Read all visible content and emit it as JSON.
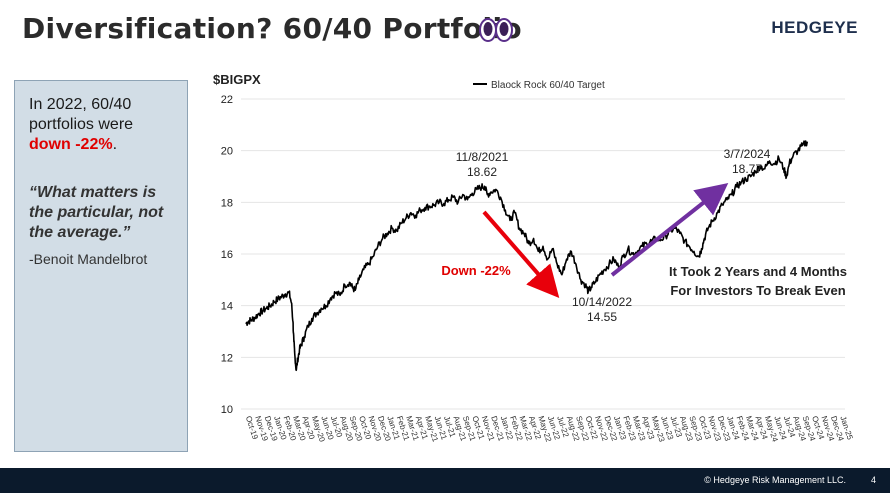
{
  "header": {
    "title": "Diversification? 60/40 Portfolio",
    "logo": "HEDGEYE",
    "emoji_icon": "eyes-icon"
  },
  "sidebar": {
    "line1": "In 2022, 60/40 portfolios were",
    "highlight": "down -22%",
    "period": ".",
    "quote": "“What matters is the particular, not the average.”",
    "author": "-Benoit Mandelbrot"
  },
  "footer": {
    "copyright": "© Hedgeye Risk Management LLC.",
    "page": "4"
  },
  "chart_data": {
    "type": "line",
    "title": "",
    "ylabel": "$BIGPX",
    "legend": "Blaock Rock 60/40 Target",
    "legend_position": "top-center",
    "ylim": [
      10,
      22
    ],
    "yticks": [
      10,
      12,
      14,
      16,
      18,
      20,
      22
    ],
    "x_categories": [
      "Oct-19",
      "Nov-19",
      "Dec-19",
      "Jan-20",
      "Feb-20",
      "Mar-20",
      "Apr-20",
      "May-20",
      "Jun-20",
      "Jul-20",
      "Aug-20",
      "Sep-20",
      "Oct-20",
      "Nov-20",
      "Dec-20",
      "Jan-21",
      "Feb-21",
      "Mar-21",
      "Apr-21",
      "May-21",
      "Jun-21",
      "Jul-21",
      "Aug-21",
      "Sep-21",
      "Oct-21",
      "Nov-21",
      "Dec-21",
      "Jan-22",
      "Feb-22",
      "Mar-22",
      "Apr-22",
      "May-22",
      "Jun-22",
      "Jul-22",
      "Aug-22",
      "Sep-22",
      "Oct-22",
      "Nov-22",
      "Dec-22",
      "Jan-23",
      "Feb-23",
      "Mar-23",
      "Apr-23",
      "May-23",
      "Jun-23",
      "Jul-23",
      "Aug-23",
      "Sep-23",
      "Oct-23",
      "Nov-23",
      "Dec-23",
      "Jan-24",
      "Feb-24",
      "Mar-24",
      "Apr-24",
      "May-24",
      "Jun-24",
      "Jul-24",
      "Aug-24",
      "Sep-24",
      "Oct-24",
      "Nov-24",
      "Dec-24",
      "Jan-25"
    ],
    "series": [
      {
        "name": "Blaock Rock 60/40 Target",
        "x": [
          0,
          0.3,
          0.6,
          1,
          1.4,
          1.8,
          2.2,
          2.6,
          3,
          3.4,
          3.8,
          4.2,
          4.6,
          4.85,
          5.0,
          5.1,
          5.2,
          5.35,
          5.5,
          5.7,
          5.9,
          6.2,
          6.6,
          7.0,
          7.5,
          8.0,
          8.5,
          9.0,
          9.5,
          10,
          10.5,
          11,
          11.3,
          11.6,
          12,
          12.5,
          13,
          13.5,
          14,
          14.5,
          15,
          15.5,
          16,
          16.5,
          17,
          17.5,
          18,
          18.5,
          19,
          19.5,
          20,
          20.5,
          21,
          21.5,
          22,
          22.5,
          23,
          23.5,
          24,
          24.5,
          25,
          25.3,
          25.6,
          26,
          26.5,
          27,
          27.5,
          28,
          28.5,
          29,
          29.5,
          30,
          30.5,
          31,
          31.5,
          32,
          32.5,
          33,
          33.5,
          34,
          34.5,
          35,
          35.5,
          36,
          36.3,
          36.6,
          37,
          37.5,
          38,
          38.5,
          39,
          39.5,
          40,
          40.5,
          41,
          41.5,
          42,
          42.5,
          43,
          43.5,
          44,
          44.5,
          45,
          45.5,
          46,
          46.5,
          47,
          47.5,
          48,
          48.3,
          48.6,
          49,
          49.5,
          50,
          50.5,
          51,
          51.5,
          52,
          52.5,
          53,
          53.5,
          54,
          54.5,
          55,
          55.5,
          56,
          56.5,
          57,
          57.3,
          57.6,
          58,
          58.5,
          59,
          59.5
        ],
        "y": [
          13.3,
          13.4,
          13.45,
          13.55,
          13.7,
          13.8,
          13.9,
          14.0,
          14.15,
          14.25,
          14.35,
          14.45,
          14.5,
          14.1,
          13.4,
          12.6,
          12.1,
          11.5,
          11.9,
          12.3,
          12.5,
          12.8,
          13.2,
          13.5,
          13.7,
          13.9,
          14.0,
          14.3,
          14.5,
          14.4,
          14.8,
          14.9,
          14.7,
          14.6,
          15.0,
          15.4,
          15.6,
          15.9,
          16.3,
          16.6,
          16.8,
          17.0,
          16.9,
          17.2,
          17.4,
          17.6,
          17.5,
          17.7,
          17.8,
          17.85,
          17.9,
          18.0,
          17.95,
          18.1,
          18.2,
          18.0,
          18.3,
          18.1,
          18.35,
          18.5,
          18.6,
          18.62,
          18.3,
          18.4,
          18.5,
          18.2,
          17.7,
          17.3,
          17.6,
          17.0,
          16.8,
          16.4,
          16.6,
          16.1,
          16.3,
          15.8,
          16.2,
          15.6,
          15.2,
          15.8,
          16.1,
          15.6,
          15.0,
          14.8,
          14.55,
          14.7,
          14.9,
          15.2,
          15.4,
          15.6,
          15.8,
          15.5,
          15.9,
          16.2,
          16.0,
          16.1,
          16.3,
          16.4,
          16.5,
          16.6,
          16.55,
          16.7,
          16.9,
          17.0,
          16.8,
          16.5,
          16.3,
          16.1,
          15.9,
          16.2,
          16.6,
          17.0,
          17.3,
          17.6,
          17.9,
          18.1,
          18.3,
          18.6,
          18.77,
          18.9,
          19.0,
          19.2,
          19.4,
          19.3,
          19.6,
          19.5,
          19.7,
          19.3,
          19.0,
          19.5,
          19.8,
          20.0,
          20.2,
          20.35
        ]
      }
    ],
    "annotations": [
      {
        "text_line1": "11/8/2021",
        "text_line2": "18.62"
      },
      {
        "text_line1": "10/14/2022",
        "text_line2": "14.55"
      },
      {
        "text_line1": "3/7/2024",
        "text_line2": "18.77"
      },
      {
        "text": "Down -22%",
        "color": "#e00000"
      },
      {
        "text_line1": "It Took 2 Years and 4 Months",
        "text_line2": "For Investors To Break Even"
      }
    ],
    "arrow_colors": {
      "down": "#e8000b",
      "up": "#7030a0"
    },
    "line_color": "#000000"
  }
}
